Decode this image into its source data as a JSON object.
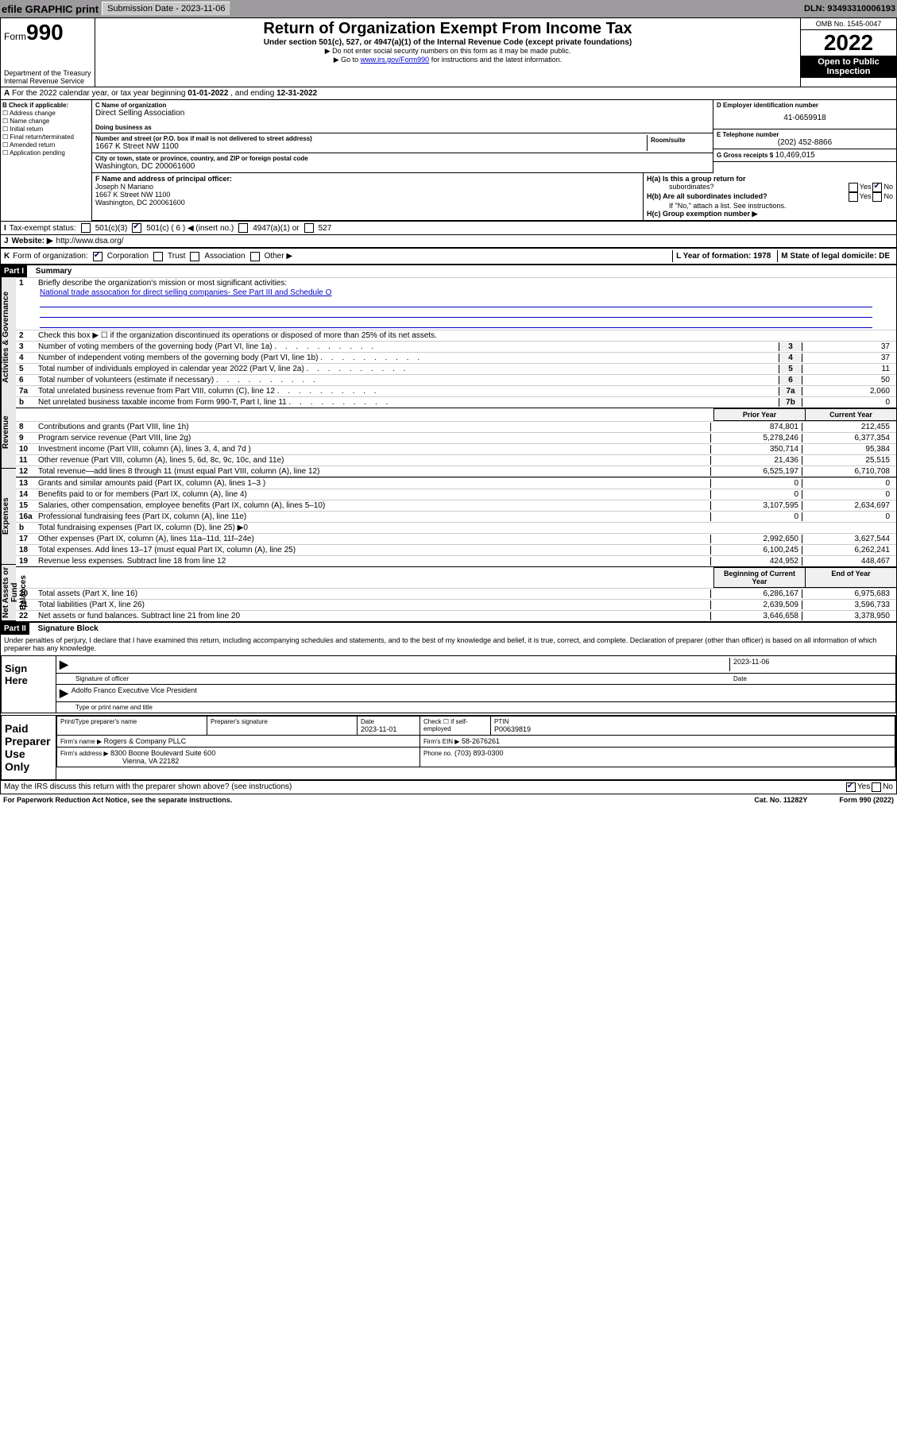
{
  "topbar": {
    "efile": "efile GRAPHIC print",
    "submission_label": "Submission Date - 2023-11-06",
    "dln": "DLN: 93493310006193"
  },
  "header": {
    "form_label": "Form",
    "form_number": "990",
    "title": "Return of Organization Exempt From Income Tax",
    "subtitle": "Under section 501(c), 527, or 4947(a)(1) of the Internal Revenue Code (except private foundations)",
    "warn": "▶ Do not enter social security numbers on this form as it may be made public.",
    "goto_pre": "▶ Go to ",
    "goto_link": "www.irs.gov/Form990",
    "goto_post": " for instructions and the latest information.",
    "dept": "Department of the Treasury\nInternal Revenue Service",
    "omb": "OMB No. 1545-0047",
    "year": "2022",
    "public": "Open to Public Inspection"
  },
  "sectionA": {
    "label_a": "A",
    "text": "For the 2022 calendar year, or tax year beginning",
    "begin": "01-01-2022",
    "mid": ", and ending",
    "end": "12-31-2022"
  },
  "colB": {
    "label": "B Check if applicable:",
    "opts": [
      "Address change",
      "Name change",
      "Initial return",
      "Final return/terminated",
      "Amended return",
      "Application pending"
    ]
  },
  "colC": {
    "name_label": "C Name of organization",
    "name": "Direct Selling Association",
    "dba_label": "Doing business as",
    "dba": "",
    "addr_label": "Number and street (or P.O. box if mail is not delivered to street address)",
    "room_label": "Room/suite",
    "addr": "1667 K Street NW 1100",
    "city_label": "City or town, state or province, country, and ZIP or foreign postal code",
    "city": "Washington, DC  200061600"
  },
  "colD": {
    "label": "D Employer identification number",
    "value": "41-0659918"
  },
  "colE": {
    "label": "E Telephone number",
    "value": "(202) 452-8866"
  },
  "colG": {
    "label": "G Gross receipts $",
    "value": "10,469,015"
  },
  "colF": {
    "label": "F  Name and address of principal officer:",
    "name": "Joseph N Mariano",
    "addr1": "1667 K Street NW 1100",
    "addr2": "Washington, DC  200061600"
  },
  "colH": {
    "ha": "H(a)  Is this a group return for",
    "ha2": "subordinates?",
    "hb": "H(b)  Are all subordinates included?",
    "hb_note": "If \"No,\" attach a list. See instructions.",
    "hc": "H(c)  Group exemption number ▶",
    "yes": "Yes",
    "no": "No"
  },
  "status": {
    "i": "I",
    "label": "Tax-exempt status:",
    "c3": "501(c)(3)",
    "c": "501(c) ( 6 ) ◀ (insert no.)",
    "a1": "4947(a)(1) or",
    "527": "527"
  },
  "website": {
    "j": "J",
    "label": "Website: ▶",
    "url": "http://www.dsa.org/"
  },
  "korg": {
    "k": "K",
    "label": "Form of organization:",
    "corp": "Corporation",
    "trust": "Trust",
    "assoc": "Association",
    "other": "Other ▶",
    "l": "L Year of formation: 1978",
    "m": "M State of legal domicile: DE"
  },
  "part1": {
    "header": "Part I",
    "title": "Summary",
    "line1_label": "1",
    "line1_text": "Briefly describe the organization's mission or most significant activities:",
    "mission": "National trade assocation for direct selling companies- See Part III and Schedule O",
    "line2_label": "2",
    "line2_text": "Check this box ▶ ☐ if the organization discontinued its operations or disposed of more than 25% of its net assets.",
    "rows_gov": [
      {
        "n": "3",
        "t": "Number of voting members of the governing body (Part VI, line 1a)",
        "box": "3",
        "v": "37"
      },
      {
        "n": "4",
        "t": "Number of independent voting members of the governing body (Part VI, line 1b)",
        "box": "4",
        "v": "37"
      },
      {
        "n": "5",
        "t": "Total number of individuals employed in calendar year 2022 (Part V, line 2a)",
        "box": "5",
        "v": "11"
      },
      {
        "n": "6",
        "t": "Total number of volunteers (estimate if necessary)",
        "box": "6",
        "v": "50"
      },
      {
        "n": "7a",
        "t": "Total unrelated business revenue from Part VIII, column (C), line 12",
        "box": "7a",
        "v": "2,060"
      },
      {
        "n": "b",
        "t": "Net unrelated business taxable income from Form 990-T, Part I, line 11",
        "box": "7b",
        "v": "0"
      }
    ],
    "prior_label": "Prior Year",
    "current_label": "Current Year",
    "rows_rev": [
      {
        "n": "8",
        "t": "Contributions and grants (Part VIII, line 1h)",
        "p": "874,801",
        "c": "212,455"
      },
      {
        "n": "9",
        "t": "Program service revenue (Part VIII, line 2g)",
        "p": "5,278,246",
        "c": "6,377,354"
      },
      {
        "n": "10",
        "t": "Investment income (Part VIII, column (A), lines 3, 4, and 7d )",
        "p": "350,714",
        "c": "95,384"
      },
      {
        "n": "11",
        "t": "Other revenue (Part VIII, column (A), lines 5, 6d, 8c, 9c, 10c, and 11e)",
        "p": "21,436",
        "c": "25,515"
      },
      {
        "n": "12",
        "t": "Total revenue—add lines 8 through 11 (must equal Part VIII, column (A), line 12)",
        "p": "6,525,197",
        "c": "6,710,708"
      }
    ],
    "rows_exp": [
      {
        "n": "13",
        "t": "Grants and similar amounts paid (Part IX, column (A), lines 1–3 )",
        "p": "0",
        "c": "0"
      },
      {
        "n": "14",
        "t": "Benefits paid to or for members (Part IX, column (A), line 4)",
        "p": "0",
        "c": "0"
      },
      {
        "n": "15",
        "t": "Salaries, other compensation, employee benefits (Part IX, column (A), lines 5–10)",
        "p": "3,107,595",
        "c": "2,634,697"
      },
      {
        "n": "16a",
        "t": "Professional fundraising fees (Part IX, column (A), line 11e)",
        "p": "0",
        "c": "0"
      },
      {
        "n": "b",
        "t": "Total fundraising expenses (Part IX, column (D), line 25) ▶0",
        "p": "",
        "c": "",
        "shaded": true
      },
      {
        "n": "17",
        "t": "Other expenses (Part IX, column (A), lines 11a–11d, 11f–24e)",
        "p": "2,992,650",
        "c": "3,627,544"
      },
      {
        "n": "18",
        "t": "Total expenses. Add lines 13–17 (must equal Part IX, column (A), line 25)",
        "p": "6,100,245",
        "c": "6,262,241"
      },
      {
        "n": "19",
        "t": "Revenue less expenses. Subtract line 18 from line 12",
        "p": "424,952",
        "c": "448,467"
      }
    ],
    "begin_label": "Beginning of Current Year",
    "end_label": "End of Year",
    "rows_net": [
      {
        "n": "20",
        "t": "Total assets (Part X, line 16)",
        "p": "6,286,167",
        "c": "6,975,683"
      },
      {
        "n": "21",
        "t": "Total liabilities (Part X, line 26)",
        "p": "2,639,509",
        "c": "3,596,733"
      },
      {
        "n": "22",
        "t": "Net assets or fund balances. Subtract line 21 from line 20",
        "p": "3,646,658",
        "c": "3,378,950"
      }
    ],
    "sidebars": [
      "Activities & Governance",
      "Revenue",
      "Expenses",
      "Net Assets or Fund Balances"
    ]
  },
  "part2": {
    "header": "Part II",
    "title": "Signature Block",
    "penalty": "Under penalties of perjury, I declare that I have examined this return, including accompanying schedules and statements, and to the best of my knowledge and belief, it is true, correct, and complete. Declaration of preparer (other than officer) is based on all information of which preparer has any knowledge.",
    "sign_here": "Sign Here",
    "sig_officer": "Signature of officer",
    "sig_date": "2023-11-06",
    "date_label": "Date",
    "officer_name": "Adolfo Franco  Executive Vice President",
    "type_label": "Type or print name and title",
    "paid": "Paid Preparer Use Only",
    "prep_name_label": "Print/Type preparer's name",
    "prep_sig_label": "Preparer's signature",
    "prep_date_label": "Date",
    "prep_date": "2023-11-01",
    "check_label": "Check ☐ if self-employed",
    "ptin_label": "PTIN",
    "ptin": "P00639819",
    "firm_name_label": "Firm's name   ▶",
    "firm_name": "Rogers & Company PLLC",
    "firm_ein_label": "Firm's EIN ▶",
    "firm_ein": "58-2676261",
    "firm_addr_label": "Firm's address ▶",
    "firm_addr1": "8300 Boone Boulevard Suite 600",
    "firm_addr2": "Vienna, VA  22182",
    "phone_label": "Phone no.",
    "phone": "(703) 893-0300",
    "may_irs": "May the IRS discuss this return with the preparer shown above? (see instructions)",
    "yes": "Yes",
    "no": "No"
  },
  "footer": {
    "paperwork": "For Paperwork Reduction Act Notice, see the separate instructions.",
    "cat": "Cat. No. 11282Y",
    "form": "Form 990 (2022)"
  }
}
